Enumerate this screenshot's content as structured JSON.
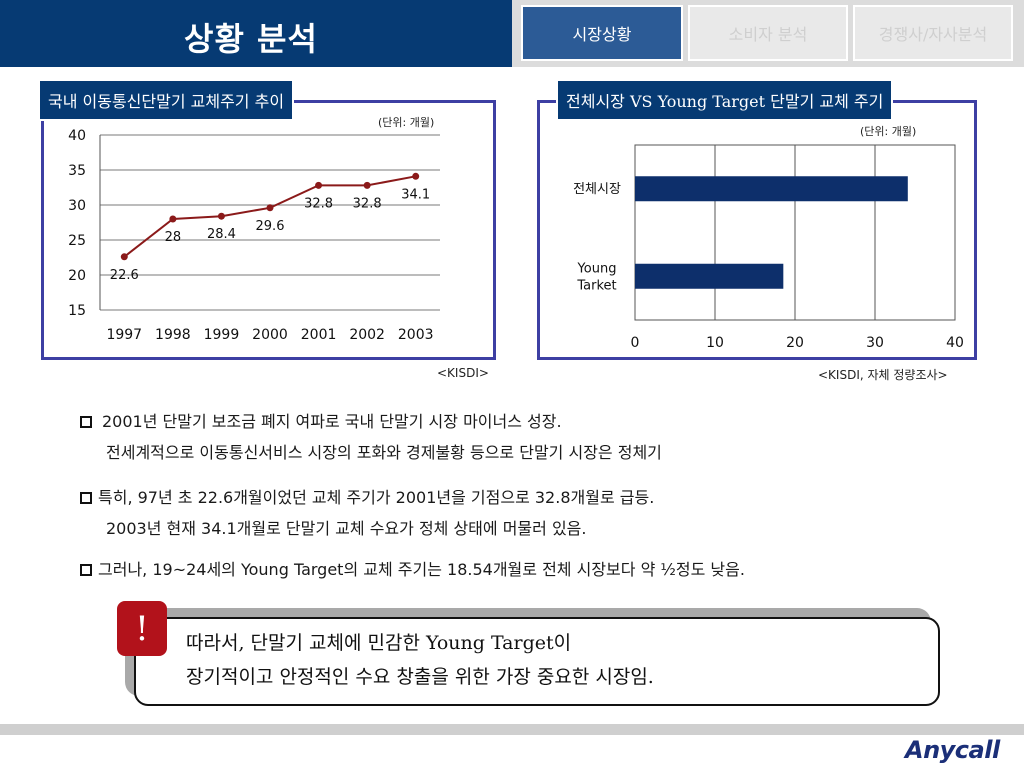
{
  "header": {
    "title": "상황 분석",
    "tabs": [
      {
        "label": "시장상황",
        "active": true
      },
      {
        "label": "소비자 분석",
        "active": false
      },
      {
        "label": "경쟁사/자사분석",
        "active": false
      }
    ]
  },
  "left_panel": {
    "title": "국내 이동통신단말기 교체주기 추이",
    "unit": "(단위: 개월)",
    "source": "<KISDI>"
  },
  "right_panel": {
    "title": "전체시장 VS Young Target 단말기 교체 주기",
    "unit": "(단위: 개월)",
    "source": "<KISDI, 자체 정량조사>"
  },
  "chart_data": [
    {
      "type": "line",
      "categories": [
        "1997",
        "1998",
        "1999",
        "2000",
        "2001",
        "2002",
        "2003"
      ],
      "values": [
        22.6,
        28,
        28.4,
        29.6,
        32.8,
        32.8,
        34.1
      ],
      "data_labels": [
        "22.6",
        "28",
        "28.4",
        "29.6",
        "32.8",
        "32.8",
        "34.1"
      ],
      "ylim": [
        15,
        40
      ],
      "yticks": [
        "15",
        "20",
        "25",
        "30",
        "35",
        "40"
      ],
      "grid": true,
      "color": "#8b1a1a"
    },
    {
      "type": "bar",
      "orientation": "horizontal",
      "categories": [
        "전체시장",
        "Young Tarket"
      ],
      "values": [
        34.1,
        18.54
      ],
      "xlim": [
        0,
        40
      ],
      "xticks": [
        "0",
        "10",
        "20",
        "30",
        "40"
      ],
      "grid": true,
      "color": "#0d2f6b"
    }
  ],
  "bullets": {
    "b1_line1": "2001년 단말기 보조금 폐지 여파로 국내 단말기 시장 마이너스 성장.",
    "b1_line2": "전세계적으로 이동통신서비스 시장의 포화와 경제불황 등으로 단말기 시장은 정체기",
    "b2_line1": "특히, 97년 초 22.6개월이었던 교체 주기가 2001년을 기점으로 32.8개월로 급등.",
    "b2_line2": "2003년 현재 34.1개월로 단말기 교체 수요가 정체 상태에 머물러 있음.",
    "b3_line1": "그러나, 19~24세의 Young Target의 교체 주기는 18.54개월로 전체 시장보다 약 ½정도 낮음."
  },
  "callout": {
    "mark": "!",
    "line1": "따라서, 단말기 교체에 민감한 Young Target이",
    "line2": "장기적이고 안정적인 수요 창출을 위한 가장 중요한 시장임."
  },
  "footer": {
    "logo": "Anycall"
  },
  "colors": {
    "navy": "#063a73",
    "panel_border": "#3d3fa3",
    "line_series": "#8b1a1a",
    "bar_series": "#0d2f6b",
    "alert_red": "#b2121b"
  }
}
